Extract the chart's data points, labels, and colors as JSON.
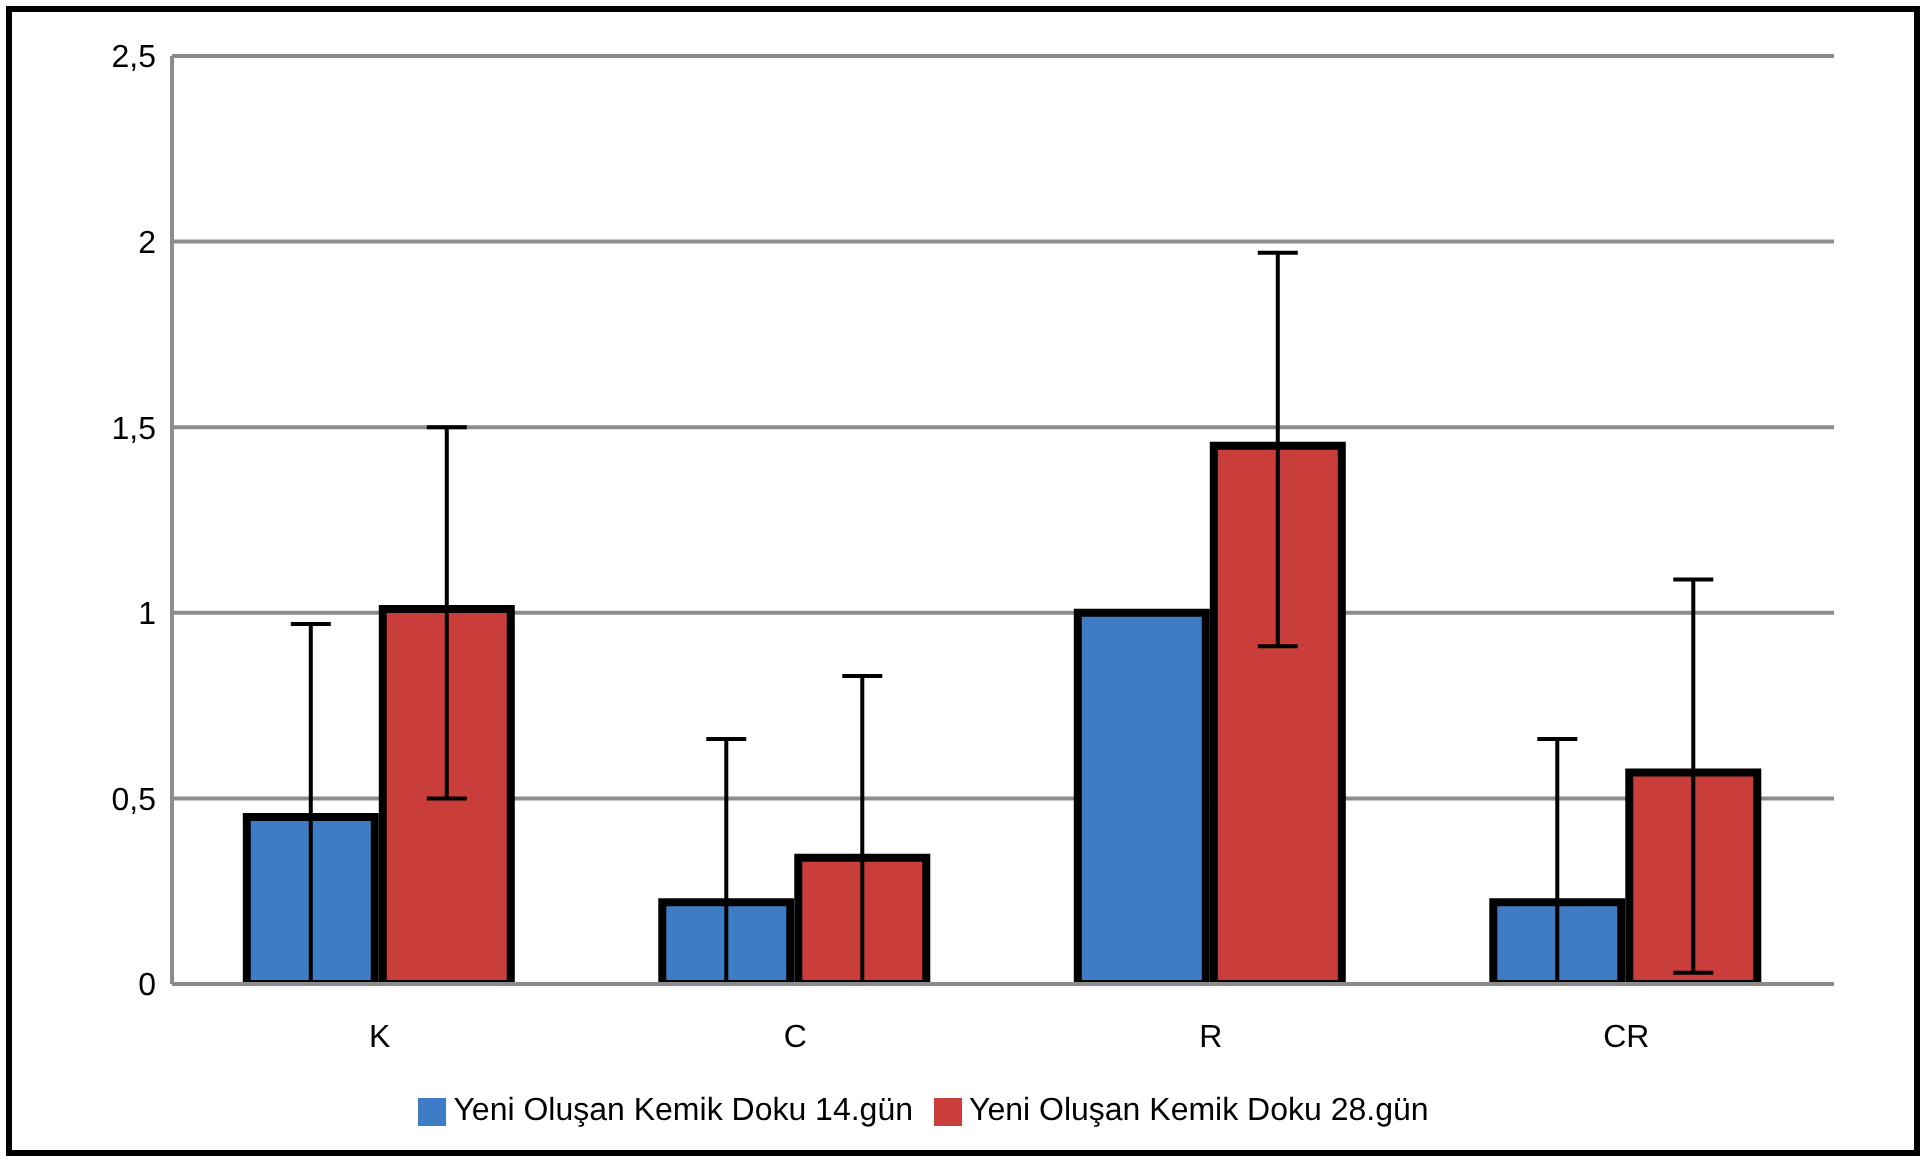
{
  "chart_data": {
    "type": "bar",
    "categories": [
      "K",
      "C",
      "R",
      "CR"
    ],
    "series": [
      {
        "name": "Yeni Oluşan Kemik Doku 14.gün",
        "color": "#3f7cc6",
        "values": [
          0.45,
          0.22,
          1.0,
          0.22
        ],
        "errors": [
          [
            0,
            0.97
          ],
          [
            0,
            0.66
          ],
          null,
          [
            0,
            0.66
          ]
        ]
      },
      {
        "name": "Yeni Oluşan Kemik Doku 28.gün",
        "color": "#c93e3b",
        "values": [
          1.01,
          0.34,
          1.45,
          0.57
        ],
        "errors": [
          [
            0.5,
            1.5
          ],
          [
            0,
            0.83
          ],
          [
            0.91,
            1.97
          ],
          [
            0.03,
            1.09
          ]
        ]
      }
    ],
    "ylim": [
      0,
      2.5
    ],
    "yticks": [
      {
        "value": 0,
        "label": "0"
      },
      {
        "value": 0.5,
        "label": "0,5"
      },
      {
        "value": 1,
        "label": "1"
      },
      {
        "value": 1.5,
        "label": "1,5"
      },
      {
        "value": 2,
        "label": "2"
      },
      {
        "value": 2.5,
        "label": "2,5"
      }
    ],
    "grid": "y",
    "legend": "bottom"
  }
}
